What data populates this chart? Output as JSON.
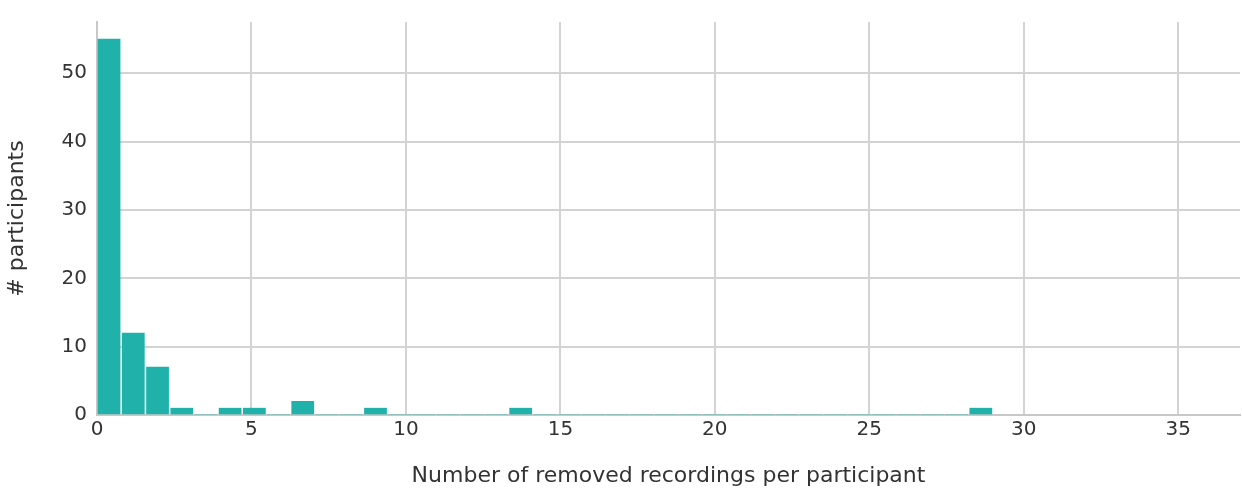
{
  "chart_data": {
    "type": "histogram",
    "xlabel": "Number of removed recordings per participant",
    "ylabel": "# participants",
    "bins": [
      0,
      0.78,
      1.57,
      2.35,
      3.14,
      3.92,
      4.7,
      5.49,
      6.27,
      7.05,
      7.84,
      8.62,
      9.41,
      10.19,
      10.97,
      11.76,
      12.54,
      13.32,
      14.11,
      14.89,
      15.68,
      16.46,
      17.24,
      18.03,
      18.81,
      19.59,
      20.38,
      21.16,
      21.95,
      22.73,
      23.51,
      24.3,
      25.08,
      25.86,
      26.65,
      27.43,
      28.22,
      29
    ],
    "values": [
      55,
      12,
      7,
      1,
      0,
      1,
      1,
      0,
      2,
      0,
      0,
      1,
      0,
      0,
      0,
      0,
      0,
      1,
      0,
      0,
      0,
      0,
      0,
      0,
      0,
      0,
      0,
      0,
      0,
      0,
      0,
      0,
      0,
      0,
      0,
      0,
      1
    ],
    "color": "#20b2aa",
    "xlim": [
      0,
      37
    ],
    "xticks": [
      0,
      5,
      10,
      15,
      20,
      25,
      30,
      35
    ],
    "ylim": [
      0,
      57.5
    ],
    "yticks": [
      0,
      10,
      20,
      30,
      40,
      50
    ],
    "grid": true
  }
}
